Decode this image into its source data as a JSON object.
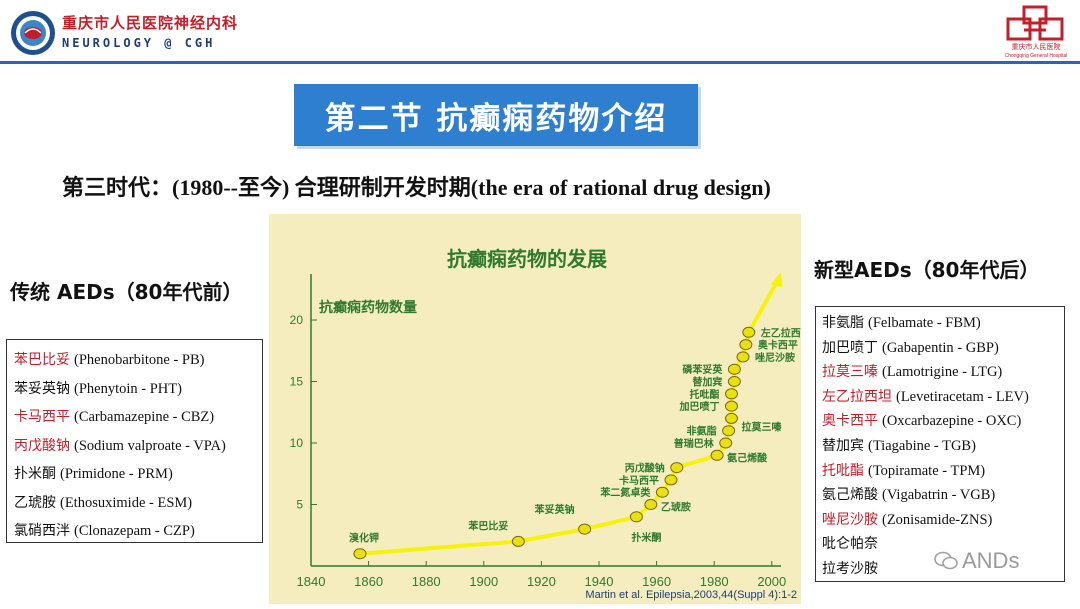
{
  "header": {
    "hospital_cn": "重庆市人民医院神经内科",
    "hospital_en": "NEUROLOGY @ CGH",
    "right_logo_text": "重庆市人民医院",
    "right_logo_subtext": "Chongqing General Hospital",
    "accent_color": "#2c64b6",
    "brand_red": "#c0202a"
  },
  "slide": {
    "title": "第二节  抗癫痫药物介绍",
    "subtitle": "第三时代：(1980--至今)  合理研制开发时期(the era of rational drug design)"
  },
  "traditional": {
    "heading": "传统 AEDs（80年代前）",
    "drugs": [
      {
        "cn": "苯巴比妥",
        "en": "(Phenobarbitone - PB)",
        "highlight": true
      },
      {
        "cn": "苯妥英钠",
        "en": "(Phenytoin - PHT)",
        "highlight": false
      },
      {
        "cn": "卡马西平",
        "en": "(Carbamazepine - CBZ)",
        "highlight": true
      },
      {
        "cn": "丙戊酸钠",
        "en": "(Sodium valproate - VPA)",
        "highlight": true
      },
      {
        "cn": "扑米酮",
        "en": "(Primidone - PRM)",
        "highlight": false
      },
      {
        "cn": "乙琥胺",
        "en": "(Ethosuximide - ESM)",
        "highlight": false
      },
      {
        "cn": "氯硝西泮",
        "en": "(Clonazepam - CZP)",
        "highlight": false
      }
    ]
  },
  "newer": {
    "heading": "新型AEDs（80年代后）",
    "drugs": [
      {
        "cn": "非氨脂",
        "en": "(Felbamate - FBM)",
        "highlight": false
      },
      {
        "cn": "加巴喷丁",
        "en": "(Gabapentin - GBP)",
        "highlight": false
      },
      {
        "cn": "拉莫三嗪",
        "en": "(Lamotrigine - LTG)",
        "highlight": true
      },
      {
        "cn": "左乙拉西坦",
        "en": "(Levetiracetam - LEV)",
        "highlight": true
      },
      {
        "cn": "奥卡西平",
        "en": "(Oxcarbazepine - OXC)",
        "highlight": true
      },
      {
        "cn": "替加宾",
        "en": "(Tiagabine - TGB)",
        "highlight": false
      },
      {
        "cn": "托吡酯",
        "en": "(Topiramate - TPM)",
        "highlight": true
      },
      {
        "cn": "氨己烯酸",
        "en": "(Vigabatrin - VGB)",
        "highlight": false
      },
      {
        "cn": "唑尼沙胺",
        "en": "(Zonisamide-ZNS)",
        "highlight": true
      },
      {
        "cn": "吡仑帕奈",
        "en": "",
        "highlight": false
      },
      {
        "cn": "拉考沙胺",
        "en": "",
        "highlight": false
      }
    ]
  },
  "watermark": "ANDs",
  "chart_data": {
    "type": "line",
    "title": "抗癫痫药物的发展",
    "ylabel": "抗癫痫药物数量",
    "xlabel": "",
    "xlim": [
      1840,
      2000
    ],
    "ylim": [
      0,
      22
    ],
    "x_ticks": [
      "1840",
      "1860",
      "1880",
      "1900",
      "1920",
      "1940",
      "1960",
      "1980",
      "2000"
    ],
    "y_ticks": [
      "5",
      "10",
      "15",
      "20"
    ],
    "grid": false,
    "citation": "Martin et al. Epilepsia,2003,44(Suppl 4):1-2",
    "line_color": "#f6f20a",
    "point_color": "#e8e010",
    "points": [
      {
        "x": 1857,
        "y": 1,
        "label": "溴化钾"
      },
      {
        "x": 1912,
        "y": 2,
        "label": "苯巴比妥"
      },
      {
        "x": 1935,
        "y": 3,
        "label": "苯妥英钠"
      },
      {
        "x": 1953,
        "y": 4,
        "label": "扑米酮"
      },
      {
        "x": 1958,
        "y": 5,
        "label": "乙琥胺"
      },
      {
        "x": 1962,
        "y": 6,
        "label": "苯二氮卓类"
      },
      {
        "x": 1965,
        "y": 7,
        "label": "卡马西平"
      },
      {
        "x": 1967,
        "y": 8,
        "label": "丙戊酸钠"
      },
      {
        "x": 1981,
        "y": 9,
        "label": "氨己烯酸"
      },
      {
        "x": 1984,
        "y": 10,
        "label": "普瑞巴林"
      },
      {
        "x": 1985,
        "y": 11,
        "label": "非氨脂"
      },
      {
        "x": 1986,
        "y": 12,
        "label": "拉莫三嗪"
      },
      {
        "x": 1986,
        "y": 13,
        "label": "加巴喷丁"
      },
      {
        "x": 1986,
        "y": 14,
        "label": "托吡酯"
      },
      {
        "x": 1987,
        "y": 15,
        "label": "替加宾"
      },
      {
        "x": 1987,
        "y": 16,
        "label": "磷苯妥英"
      },
      {
        "x": 1990,
        "y": 17,
        "label": "唑尼沙胺"
      },
      {
        "x": 1991,
        "y": 18,
        "label": "奥卡西平"
      },
      {
        "x": 1992,
        "y": 19,
        "label": "左乙拉西坦"
      }
    ]
  }
}
